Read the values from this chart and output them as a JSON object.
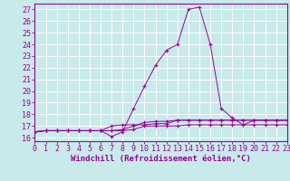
{
  "x": [
    0,
    1,
    2,
    3,
    4,
    5,
    6,
    7,
    8,
    9,
    10,
    11,
    12,
    13,
    14,
    15,
    16,
    17,
    18,
    19,
    20,
    21,
    22,
    23
  ],
  "line1": [
    16.5,
    16.6,
    16.6,
    16.6,
    16.6,
    16.6,
    16.6,
    16.6,
    16.6,
    16.7,
    17.0,
    17.0,
    17.0,
    17.0,
    17.1,
    17.1,
    17.1,
    17.1,
    17.1,
    17.1,
    17.1,
    17.1,
    17.1,
    17.1
  ],
  "line2": [
    16.5,
    16.6,
    16.6,
    16.6,
    16.6,
    16.6,
    16.6,
    16.6,
    16.7,
    17.0,
    17.3,
    17.4,
    17.4,
    17.5,
    17.5,
    17.5,
    17.5,
    17.5,
    17.5,
    17.5,
    17.5,
    17.5,
    17.5,
    17.5
  ],
  "line3": [
    16.5,
    16.6,
    16.6,
    16.6,
    16.6,
    16.6,
    16.6,
    16.1,
    16.5,
    18.5,
    20.4,
    22.2,
    23.5,
    24.0,
    27.0,
    27.2,
    24.0,
    18.5,
    17.7,
    17.1,
    17.5,
    17.5,
    17.5,
    17.5
  ],
  "line4": [
    16.5,
    16.6,
    16.6,
    16.6,
    16.6,
    16.6,
    16.6,
    17.0,
    17.1,
    17.1,
    17.1,
    17.2,
    17.2,
    17.5,
    17.5,
    17.5,
    17.5,
    17.5,
    17.5,
    17.5,
    17.5,
    17.5,
    17.5,
    17.5
  ],
  "color": "#990099",
  "bg_color": "#c8eaea",
  "grid_color": "#b0d8d8",
  "xlabel": "Windchill (Refroidissement éolien,°C)",
  "ytick_labels": [
    "16",
    "17",
    "18",
    "19",
    "20",
    "21",
    "22",
    "23",
    "24",
    "25",
    "26",
    "27"
  ],
  "ytick_values": [
    16,
    17,
    18,
    19,
    20,
    21,
    22,
    23,
    24,
    25,
    26,
    27
  ],
  "xtick_labels": [
    "0",
    "1",
    "2",
    "3",
    "4",
    "5",
    "6",
    "7",
    "8",
    "9",
    "10",
    "11",
    "12",
    "13",
    "14",
    "15",
    "16",
    "17",
    "18",
    "19",
    "20",
    "21",
    "22",
    "23"
  ],
  "xlim": [
    0,
    23
  ],
  "ylim": [
    15.7,
    27.5
  ],
  "label_fontsize": 6.5,
  "tick_fontsize": 6.0
}
